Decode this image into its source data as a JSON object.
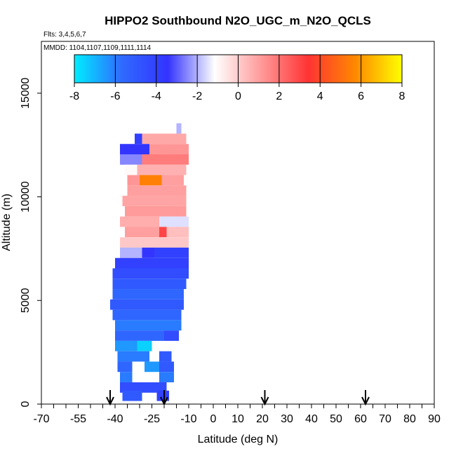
{
  "chart_data": {
    "type": "heatmap",
    "title": "HIPPO2 Southbound N2O_UGC_m_N2O_QCLS",
    "subtitle_flights": "Flts: 3,4,5,6,7",
    "subtitle_dates": "MMDD: 1104,1107,1109,1111,1114",
    "xlabel": "Latitude (deg N)",
    "ylabel": "Altitude (m)",
    "xlim": [
      -70,
      90
    ],
    "ylim": [
      0,
      17500
    ],
    "x_ticks": [
      -70,
      -55,
      -40,
      -25,
      -10,
      0,
      10,
      20,
      30,
      40,
      50,
      60,
      70,
      80,
      90
    ],
    "x_tick_labels": [
      "-70",
      "-55",
      "-40",
      "-25",
      "-10",
      "0",
      "10",
      "20",
      "30",
      "40",
      "50",
      "60",
      "70",
      "80",
      "90"
    ],
    "y_ticks": [
      0,
      5000,
      10000,
      15000
    ],
    "y_tick_labels": [
      "0",
      "5000",
      "10000",
      "15000"
    ],
    "colorbar": {
      "range": [
        -8,
        8
      ],
      "ticks": [
        -8,
        -6,
        -4,
        -2,
        0,
        2,
        4,
        6,
        8
      ],
      "tick_labels": [
        "-8",
        "-6",
        "-4",
        "-2",
        "0",
        "2",
        "4",
        "6",
        "8"
      ],
      "colors": [
        "#00eeff",
        "#2f6bff",
        "#3333ff",
        "#ffffff",
        "#ff9999",
        "#ff3333",
        "#ff8800",
        "#ffff00"
      ]
    },
    "arrows_latitude": [
      -42,
      -20,
      21,
      62
    ],
    "bands": [
      {
        "alt": 13300,
        "lat0": -15,
        "lat1": -13,
        "val": -2.0
      },
      {
        "alt": 12800,
        "lat0": -32,
        "lat1": -29,
        "val": -4.0
      },
      {
        "alt": 12800,
        "lat0": -29,
        "lat1": -11,
        "val": 0.8
      },
      {
        "alt": 12300,
        "lat0": -38,
        "lat1": -26,
        "val": -3.5
      },
      {
        "alt": 12300,
        "lat0": -26,
        "lat1": -10,
        "val": 1.2
      },
      {
        "alt": 11800,
        "lat0": -38,
        "lat1": -29,
        "val": -2.5
      },
      {
        "alt": 11800,
        "lat0": -29,
        "lat1": -10,
        "val": 1.8
      },
      {
        "alt": 11300,
        "lat0": -36,
        "lat1": -31,
        "val": -1.0
      },
      {
        "alt": 11300,
        "lat0": -31,
        "lat1": -11,
        "val": 0.6
      },
      {
        "alt": 10800,
        "lat0": -35,
        "lat1": -30,
        "val": 1.2
      },
      {
        "alt": 10800,
        "lat0": -30,
        "lat1": -21,
        "val": 5.5
      },
      {
        "alt": 10800,
        "lat0": -21,
        "lat1": -12,
        "val": 1.0
      },
      {
        "alt": 10300,
        "lat0": -35,
        "lat1": -11,
        "val": 1.0
      },
      {
        "alt": 9800,
        "lat0": -37,
        "lat1": -11,
        "val": 0.9
      },
      {
        "alt": 9300,
        "lat0": -36,
        "lat1": -11,
        "val": 1.1
      },
      {
        "alt": 8800,
        "lat0": -38,
        "lat1": -22,
        "val": 0.7
      },
      {
        "alt": 8800,
        "lat0": -22,
        "lat1": -10,
        "val": -1.5
      },
      {
        "alt": 8300,
        "lat0": -36,
        "lat1": -22,
        "val": 1.0
      },
      {
        "alt": 8300,
        "lat0": -22,
        "lat1": -19,
        "val": 3.0
      },
      {
        "alt": 8300,
        "lat0": -19,
        "lat1": -10,
        "val": 0.3
      },
      {
        "alt": 7800,
        "lat0": -38,
        "lat1": -10,
        "val": 0.1
      },
      {
        "alt": 7300,
        "lat0": -38,
        "lat1": -29,
        "val": -2.0
      },
      {
        "alt": 7300,
        "lat0": -29,
        "lat1": -24,
        "val": -3.5
      },
      {
        "alt": 7300,
        "lat0": -24,
        "lat1": -10,
        "val": -4.0
      },
      {
        "alt": 6800,
        "lat0": -40,
        "lat1": -10,
        "val": -4.0
      },
      {
        "alt": 6300,
        "lat0": -41,
        "lat1": -10,
        "val": -4.5
      },
      {
        "alt": 5800,
        "lat0": -41,
        "lat1": -11,
        "val": -5.0
      },
      {
        "alt": 5300,
        "lat0": -41,
        "lat1": -12,
        "val": -5.5
      },
      {
        "alt": 4800,
        "lat0": -42,
        "lat1": -12,
        "val": -5.0
      },
      {
        "alt": 4300,
        "lat0": -41,
        "lat1": -13,
        "val": -5.5
      },
      {
        "alt": 3800,
        "lat0": -40,
        "lat1": -13,
        "val": -6.0
      },
      {
        "alt": 3300,
        "lat0": -40,
        "lat1": -20,
        "val": -5.5
      },
      {
        "alt": 3300,
        "lat0": -20,
        "lat1": -14,
        "val": -4.5
      },
      {
        "alt": 2800,
        "lat0": -40,
        "lat1": -31,
        "val": -6.5
      },
      {
        "alt": 2800,
        "lat0": -31,
        "lat1": -25,
        "val": -7.5
      },
      {
        "alt": 2300,
        "lat0": -39,
        "lat1": -26,
        "val": -6.0
      },
      {
        "alt": 2300,
        "lat0": -22,
        "lat1": -17,
        "val": -5.0
      },
      {
        "alt": 1800,
        "lat0": -39,
        "lat1": -33,
        "val": -5.5
      },
      {
        "alt": 1800,
        "lat0": -28,
        "lat1": -22,
        "val": -6.5
      },
      {
        "alt": 1800,
        "lat0": -22,
        "lat1": -16,
        "val": -5.0
      },
      {
        "alt": 1300,
        "lat0": -38,
        "lat1": -33,
        "val": -6.0
      },
      {
        "alt": 1300,
        "lat0": -22,
        "lat1": -16,
        "val": -6.0
      },
      {
        "alt": 800,
        "lat0": -38,
        "lat1": -19,
        "val": -4.5
      },
      {
        "alt": 400,
        "lat0": -37,
        "lat1": -29,
        "val": -5.0
      },
      {
        "alt": 400,
        "lat0": -23,
        "lat1": -18,
        "val": -4.0
      }
    ]
  }
}
